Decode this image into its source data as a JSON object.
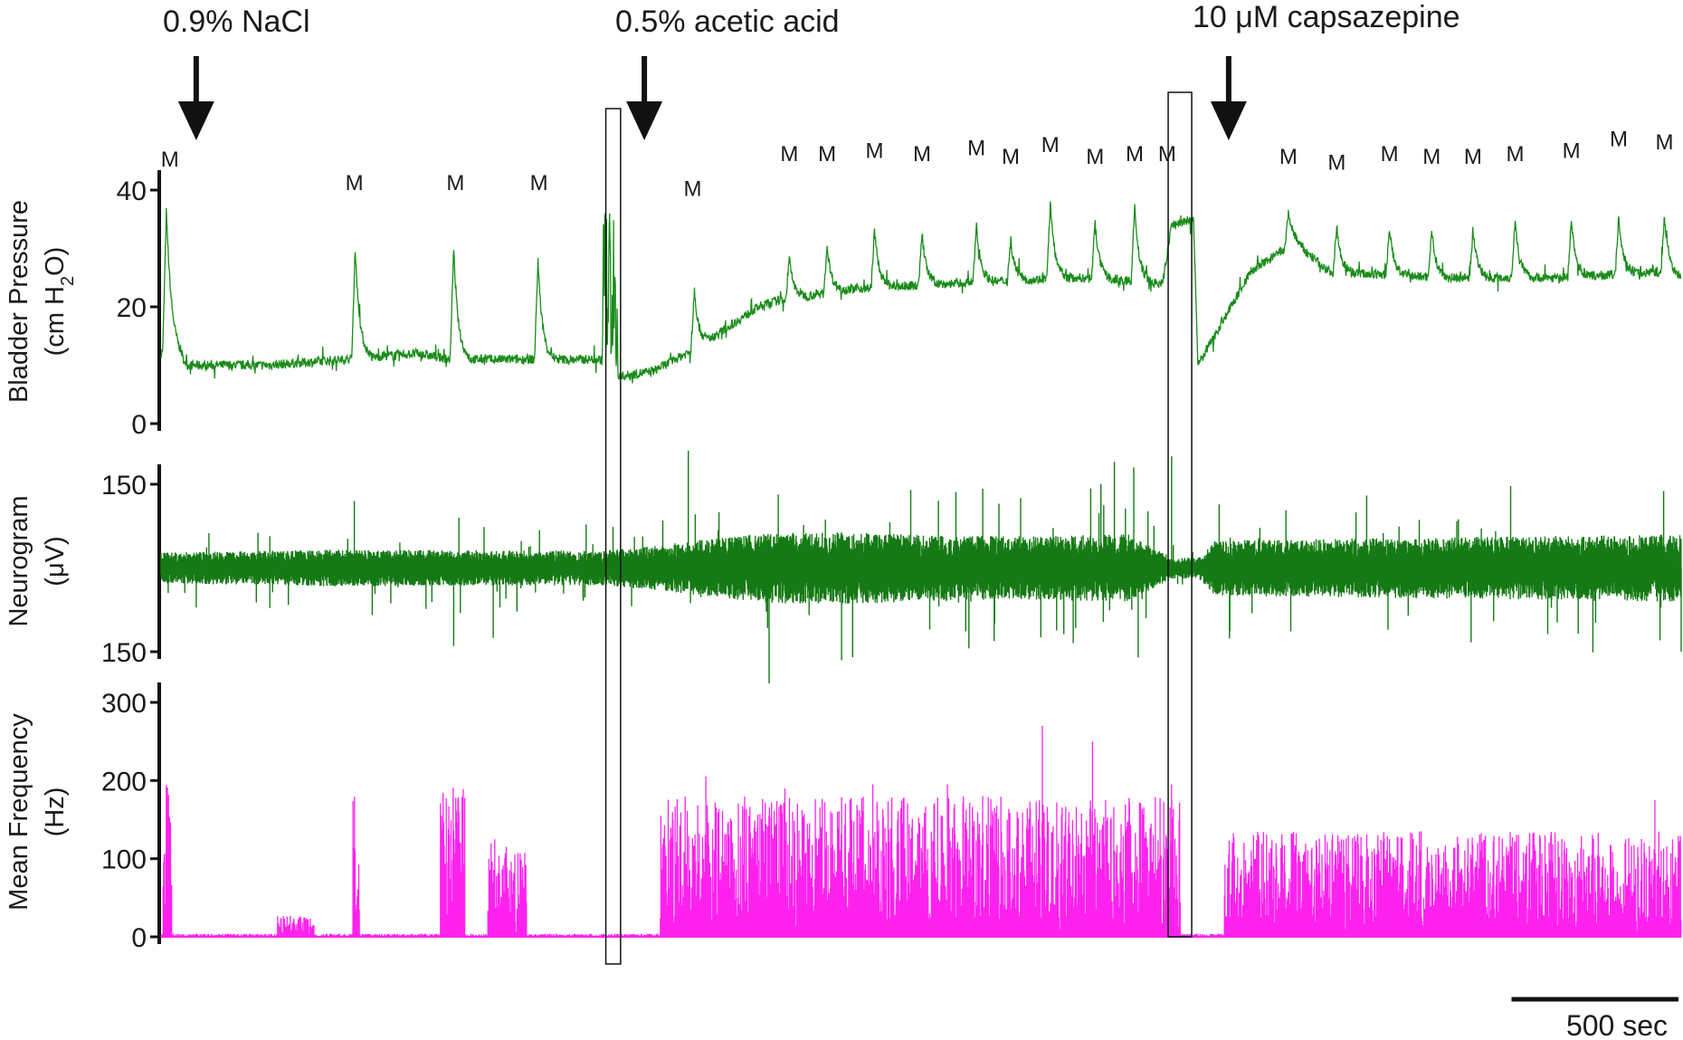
{
  "chart_data": {
    "type": "line",
    "treatments": [
      {
        "label": "0.9% NaCl",
        "t": 40
      },
      {
        "label": "0.5% acetic acid",
        "t": 550
      },
      {
        "label": "10 μM capsazepine",
        "t": 1215
      }
    ],
    "scale_bar": {
      "label": "500 sec",
      "seconds": 500
    },
    "boxes": [
      [
        500,
        525
      ],
      [
        1140,
        1175
      ]
    ],
    "panels": [
      {
        "id": "pressure",
        "ylabel_line1": "Bladder Pressure",
        "ylabel_line2": "(cm H",
        "ylabel_sub": "2",
        "ylabel_end": "O)",
        "ylim": [
          0,
          40
        ],
        "ticks": [
          "0",
          "20",
          "40"
        ],
        "tick_values": [
          0,
          20,
          40
        ],
        "color": "#1a8c1a",
        "baseline_points": [
          [
            0,
            12
          ],
          [
            8,
            15
          ],
          [
            30,
            10
          ],
          [
            120,
            10
          ],
          [
            210,
            11
          ],
          [
            290,
            12
          ],
          [
            330,
            11
          ],
          [
            500,
            11
          ],
          [
            520,
            8
          ],
          [
            560,
            9
          ],
          [
            610,
            13
          ],
          [
            680,
            20
          ],
          [
            700,
            21
          ],
          [
            780,
            23
          ],
          [
            900,
            24
          ],
          [
            1040,
            25
          ],
          [
            1140,
            24
          ],
          [
            1150,
            34
          ],
          [
            1175,
            35
          ],
          [
            1180,
            10
          ],
          [
            1240,
            26
          ],
          [
            1290,
            31
          ],
          [
            1330,
            26
          ],
          [
            1460,
            25
          ],
          [
            1600,
            25
          ],
          [
            1700,
            26
          ],
          [
            1730,
            25
          ]
        ],
        "m_labels": [
          {
            "t": 10,
            "label": "M",
            "y": 44
          },
          {
            "t": 220,
            "label": "M",
            "y": 40
          },
          {
            "t": 335,
            "label": "M",
            "y": 40
          },
          {
            "t": 430,
            "label": "M",
            "y": 40
          },
          {
            "t": 605,
            "label": "M",
            "y": 39
          },
          {
            "t": 715,
            "label": "M",
            "y": 45
          },
          {
            "t": 758,
            "label": "M",
            "y": 45
          },
          {
            "t": 812,
            "label": "M",
            "y": 45.5
          },
          {
            "t": 866,
            "label": "M",
            "y": 45
          },
          {
            "t": 928,
            "label": "M",
            "y": 46
          },
          {
            "t": 967,
            "label": "M",
            "y": 44.5
          },
          {
            "t": 1012,
            "label": "M",
            "y": 46.5
          },
          {
            "t": 1063,
            "label": "M",
            "y": 44.5
          },
          {
            "t": 1108,
            "label": "M",
            "y": 45
          },
          {
            "t": 1145,
            "label": "M",
            "y": 45
          },
          {
            "t": 1283,
            "label": "M",
            "y": 44.5
          },
          {
            "t": 1338,
            "label": "M",
            "y": 43.5
          },
          {
            "t": 1398,
            "label": "M",
            "y": 45
          },
          {
            "t": 1446,
            "label": "M",
            "y": 44.5
          },
          {
            "t": 1493,
            "label": "M",
            "y": 44.5
          },
          {
            "t": 1541,
            "label": "M",
            "y": 45
          },
          {
            "t": 1605,
            "label": "M",
            "y": 45.5
          },
          {
            "t": 1659,
            "label": "M",
            "y": 47.5
          },
          {
            "t": 1711,
            "label": "M",
            "y": 47
          }
        ],
        "peaks": [
          {
            "t": 6,
            "amp": 22
          },
          {
            "t": 221,
            "amp": 19
          },
          {
            "t": 333,
            "amp": 19
          },
          {
            "t": 429,
            "amp": 17
          },
          {
            "t": 607,
            "amp": 10
          },
          {
            "t": 715,
            "amp": 7
          },
          {
            "t": 758,
            "amp": 8
          },
          {
            "t": 812,
            "amp": 10
          },
          {
            "t": 866,
            "amp": 9
          },
          {
            "t": 928,
            "amp": 10
          },
          {
            "t": 967,
            "amp": 7
          },
          {
            "t": 1012,
            "amp": 13
          },
          {
            "t": 1063,
            "amp": 10
          },
          {
            "t": 1108,
            "amp": 13
          },
          {
            "t": 1283,
            "amp": 6
          },
          {
            "t": 1338,
            "amp": 8
          },
          {
            "t": 1398,
            "amp": 8
          },
          {
            "t": 1446,
            "amp": 8
          },
          {
            "t": 1493,
            "amp": 8
          },
          {
            "t": 1541,
            "amp": 10
          },
          {
            "t": 1605,
            "amp": 10
          },
          {
            "t": 1659,
            "amp": 10
          },
          {
            "t": 1711,
            "amp": 10
          }
        ]
      },
      {
        "id": "neurogram",
        "ylabel_line1": "Neurogram",
        "ylabel_line2": "(μV)",
        "ylim": [
          -150,
          150
        ],
        "ticks": [
          "150",
          "150"
        ],
        "tick_values": [
          150,
          -150
        ],
        "color": "#157a15",
        "envelope_points": [
          [
            0,
            25
          ],
          [
            200,
            30
          ],
          [
            500,
            28
          ],
          [
            560,
            36
          ],
          [
            610,
            45
          ],
          [
            700,
            58
          ],
          [
            800,
            58
          ],
          [
            900,
            52
          ],
          [
            1000,
            52
          ],
          [
            1100,
            55
          ],
          [
            1150,
            18
          ],
          [
            1180,
            16
          ],
          [
            1200,
            45
          ],
          [
            1730,
            55
          ]
        ]
      },
      {
        "id": "frequency",
        "ylabel_line1": "Mean Frequency",
        "ylabel_line2": "(Hz)",
        "ylim": [
          0,
          300
        ],
        "ticks": [
          "0",
          "100",
          "200",
          "300"
        ],
        "tick_values": [
          0,
          100,
          200,
          300
        ],
        "color": "#ff22ee",
        "bursts": [
          {
            "t0": 2,
            "t1": 12,
            "max": 220
          },
          {
            "t0": 132,
            "t1": 175,
            "max": 30
          },
          {
            "t0": 218,
            "t1": 226,
            "max": 200
          },
          {
            "t0": 318,
            "t1": 346,
            "max": 220
          },
          {
            "t0": 372,
            "t1": 416,
            "max": 140
          },
          {
            "t0": 568,
            "t1": 1160,
            "max": 200
          },
          {
            "t0": 1210,
            "t1": 1730,
            "max": 150
          }
        ],
        "peak_points": [
          [
            620,
            205
          ],
          [
            710,
            190
          ],
          [
            810,
            195
          ],
          [
            895,
            195
          ],
          [
            935,
            180
          ],
          [
            1003,
            270
          ],
          [
            1060,
            250
          ],
          [
            1075,
            175
          ],
          [
            1150,
            195
          ],
          [
            1700,
            175
          ]
        ]
      }
    ]
  }
}
